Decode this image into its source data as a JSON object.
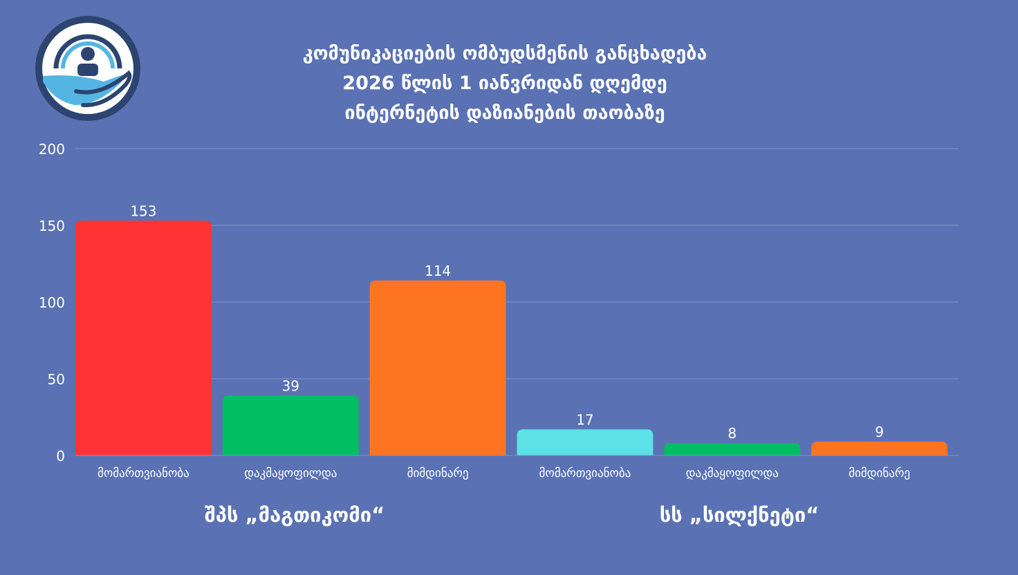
{
  "header": {
    "title_lines": [
      "კომუნიკაციების ომბუდსმენის განცხადება",
      "2026 წლის 1 იანვრიდან დღემდე",
      "ინტერნეტის დაზიანების თაობაზე"
    ]
  },
  "logo": {
    "icon": "ombudsman-hand-person-logo-icon"
  },
  "groups": [
    "შპს „მაგთიკომი“",
    "სს „სილქნეტი“"
  ],
  "colors": {
    "background": "#5a72b3",
    "red": "#ff3333",
    "green": "#00bf63",
    "orange": "#ff7420",
    "cyan": "#5ce1e6",
    "grid": "#8393c6"
  },
  "chart_data": {
    "type": "bar",
    "title": "",
    "xlabel": "",
    "ylabel": "",
    "ylim": [
      0,
      200
    ],
    "yticks": [
      0,
      50,
      100,
      150,
      200
    ],
    "grid": true,
    "categories": [
      "მომართვიანობა",
      "დაკმაყოფილდა",
      "მიმდინარე",
      "მომართვიანობა",
      "დაკმაყოფილდა",
      "მიმდინარე"
    ],
    "values": [
      153,
      39,
      114,
      17,
      8,
      9
    ],
    "bar_colors": [
      "#ff3333",
      "#00bf63",
      "#ff7420",
      "#5ce1e6",
      "#00bf63",
      "#ff7420"
    ],
    "groups": [
      {
        "name": "შპს „მაგთიკომი“",
        "categories": [
          0,
          1,
          2
        ]
      },
      {
        "name": "სს „სილქნეტი“",
        "categories": [
          3,
          4,
          5
        ]
      }
    ]
  }
}
